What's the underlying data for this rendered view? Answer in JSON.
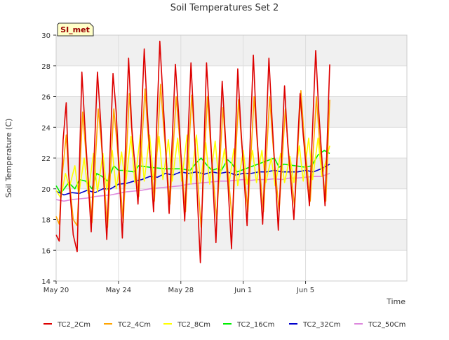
{
  "chart_data": {
    "type": "line",
    "title": "Soil Temperatures Set 2",
    "xlabel": "Time",
    "ylabel": "Soil Temperature (C)",
    "badge": "SI_met",
    "xlim": [
      0,
      22.5
    ],
    "ylim": [
      14,
      30
    ],
    "yticks": [
      14,
      16,
      18,
      20,
      22,
      24,
      26,
      28,
      30
    ],
    "xticks": [
      {
        "value": 0,
        "label": "May 20"
      },
      {
        "value": 4,
        "label": "May 24"
      },
      {
        "value": 8,
        "label": "May 28"
      },
      {
        "value": 12,
        "label": "Jun 1"
      },
      {
        "value": 16,
        "label": "Jun 5"
      }
    ],
    "grid": true,
    "legend_position": "bottom",
    "colors": {
      "TC2_2Cm": "#dd0000",
      "TC2_4Cm": "#ffa500",
      "TC2_8Cm": "#ffff00",
      "TC2_16Cm": "#00ee00",
      "TC2_32Cm": "#0000cc",
      "TC2_50Cm": "#dd88dd"
    },
    "series": [
      {
        "name": "TC2_2Cm",
        "x": [
          0.0,
          0.2,
          0.45,
          0.65,
          0.8,
          1.1,
          1.35,
          1.65,
          1.85,
          2.25,
          2.65,
          2.85,
          3.25,
          3.65,
          3.85,
          4.25,
          4.65,
          4.85,
          5.25,
          5.65,
          5.85,
          6.25,
          6.65,
          6.85,
          7.25,
          7.65,
          7.85,
          8.25,
          8.65,
          8.85,
          9.25,
          9.65,
          9.85,
          10.25,
          10.65,
          10.85,
          11.25,
          11.65,
          11.85,
          12.25,
          12.65,
          12.85,
          13.25,
          13.65,
          13.85,
          14.25,
          14.65,
          14.85,
          15.25,
          15.65,
          15.85,
          16.25,
          16.65,
          16.85,
          17.25,
          17.55
        ],
        "y": [
          17.0,
          16.6,
          23.2,
          25.6,
          21.0,
          17.0,
          15.9,
          27.6,
          24.0,
          17.2,
          27.6,
          24.5,
          16.7,
          27.5,
          25.0,
          16.8,
          28.5,
          24.0,
          19.0,
          29.1,
          25.0,
          18.5,
          29.6,
          26.0,
          18.4,
          28.1,
          25.0,
          17.9,
          28.2,
          24.0,
          15.2,
          28.2,
          24.5,
          16.5,
          27.0,
          23.5,
          16.1,
          27.8,
          24.0,
          17.6,
          28.7,
          24.0,
          17.7,
          28.5,
          24.5,
          17.3,
          26.7,
          23.0,
          18.0,
          26.2,
          23.5,
          18.9,
          29.0,
          25.0,
          18.9,
          28.1
        ]
      },
      {
        "name": "TC2_4Cm",
        "x": [
          0.0,
          0.2,
          0.4,
          0.65,
          0.8,
          1.1,
          1.35,
          1.7,
          1.9,
          2.3,
          2.7,
          2.9,
          3.3,
          3.7,
          3.9,
          4.3,
          4.7,
          4.9,
          5.3,
          5.7,
          5.9,
          6.3,
          6.7,
          6.9,
          7.3,
          7.7,
          7.9,
          8.3,
          8.7,
          8.9,
          9.3,
          9.7,
          9.9,
          10.3,
          10.7,
          10.9,
          11.3,
          11.7,
          11.9,
          12.3,
          12.7,
          12.9,
          13.3,
          13.7,
          13.9,
          14.3,
          14.7,
          14.9,
          15.3,
          15.7,
          15.9,
          16.3,
          16.7,
          16.9,
          17.3,
          17.55
        ],
        "y": [
          18.2,
          17.7,
          21.0,
          23.5,
          21.0,
          18.0,
          17.6,
          25.0,
          22.5,
          17.8,
          25.2,
          23.0,
          17.5,
          25.2,
          23.0,
          17.8,
          26.2,
          23.0,
          19.5,
          26.5,
          23.5,
          19.2,
          26.8,
          24.0,
          19.0,
          26.0,
          23.5,
          18.5,
          26.1,
          23.0,
          17.5,
          26.0,
          23.0,
          18.0,
          25.3,
          22.5,
          17.9,
          25.8,
          23.0,
          18.5,
          26.0,
          23.0,
          18.5,
          26.0,
          23.0,
          18.5,
          25.2,
          22.5,
          18.8,
          26.4,
          23.5,
          19.2,
          26.0,
          23.0,
          19.2,
          25.8
        ]
      },
      {
        "name": "TC2_8Cm",
        "x": [
          0.0,
          0.3,
          0.6,
          0.85,
          1.2,
          1.45,
          1.8,
          2.05,
          2.4,
          2.65,
          3.0,
          3.25,
          3.6,
          3.85,
          4.2,
          4.45,
          4.8,
          5.05,
          5.4,
          5.65,
          6.0,
          6.25,
          6.6,
          6.85,
          7.2,
          7.45,
          7.8,
          8.05,
          8.4,
          8.65,
          9.0,
          9.25,
          9.6,
          9.85,
          10.2,
          10.45,
          10.8,
          11.05,
          11.4,
          11.65,
          12.0,
          12.25,
          12.6,
          12.85,
          13.2,
          13.45,
          13.8,
          14.05,
          14.4,
          14.65,
          15.0,
          15.25,
          15.6,
          15.85,
          16.2,
          16.45,
          16.8,
          17.05,
          17.55
        ],
        "y": [
          19.9,
          19.4,
          21.0,
          20.1,
          21.5,
          19.6,
          22.0,
          19.7,
          22.3,
          19.8,
          22.3,
          19.9,
          22.5,
          20.0,
          22.4,
          20.2,
          23.4,
          20.4,
          23.5,
          20.5,
          23.5,
          20.6,
          23.4,
          20.6,
          23.2,
          20.5,
          23.3,
          20.5,
          23.5,
          20.3,
          23.5,
          20.4,
          23.0,
          20.3,
          23.1,
          20.4,
          22.6,
          20.0,
          22.6,
          20.2,
          22.5,
          20.3,
          22.5,
          20.4,
          22.5,
          20.4,
          22.0,
          20.2,
          22.3,
          20.4,
          22.1,
          20.4,
          22.8,
          20.5,
          23.3,
          20.6,
          23.3,
          20.8,
          22.8
        ]
      },
      {
        "name": "TC2_16Cm",
        "x": [
          0.0,
          0.3,
          0.8,
          1.2,
          1.5,
          1.9,
          2.3,
          2.6,
          2.95,
          3.3,
          3.7,
          4.0,
          4.3,
          5.0,
          5.3,
          6.0,
          7.0,
          8.0,
          8.6,
          9.0,
          9.3,
          9.7,
          10.0,
          10.3,
          10.6,
          11.0,
          11.3,
          11.6,
          14.0,
          14.3,
          14.6,
          16.0,
          16.4,
          16.8,
          17.2,
          17.55
        ],
        "y": [
          20.2,
          19.7,
          20.4,
          20.0,
          20.6,
          20.5,
          20.0,
          21.0,
          20.8,
          20.5,
          21.5,
          21.2,
          21.2,
          21.1,
          21.5,
          21.4,
          21.3,
          21.3,
          21.2,
          21.7,
          22.0,
          21.5,
          21.2,
          21.3,
          21.2,
          21.9,
          21.6,
          21.1,
          22.0,
          21.4,
          21.6,
          21.4,
          21.5,
          22.2,
          22.5,
          22.3
        ]
      },
      {
        "name": "TC2_32Cm",
        "x": [
          0.0,
          0.5,
          1.0,
          1.5,
          2.0,
          2.5,
          3.0,
          3.5,
          4.0,
          4.5,
          5.0,
          5.5,
          6.0,
          6.5,
          7.0,
          7.5,
          8.0,
          8.5,
          9.0,
          9.5,
          10.0,
          10.5,
          11.0,
          11.5,
          12.0,
          12.5,
          13.0,
          13.5,
          14.0,
          14.5,
          15.0,
          15.5,
          16.0,
          16.5,
          17.0,
          17.55
        ],
        "y": [
          19.85,
          19.6,
          19.75,
          19.7,
          19.9,
          19.75,
          20.0,
          20.0,
          20.3,
          20.35,
          20.5,
          20.6,
          20.8,
          20.75,
          21.0,
          20.9,
          21.1,
          21.0,
          21.1,
          20.95,
          21.1,
          21.0,
          21.1,
          20.9,
          21.0,
          21.0,
          21.1,
          21.1,
          21.2,
          21.1,
          21.1,
          21.1,
          21.2,
          21.1,
          21.3,
          21.6
        ]
      },
      {
        "name": "TC2_50Cm",
        "x": [
          0.0,
          0.5,
          1.0,
          1.5,
          2.0,
          2.5,
          3.0,
          3.5,
          4.0,
          4.5,
          5.0,
          5.5,
          6.0,
          6.5,
          7.0,
          7.5,
          8.0,
          8.5,
          9.0,
          9.5,
          10.0,
          10.5,
          11.0,
          11.5,
          12.0,
          12.5,
          13.0,
          13.5,
          14.0,
          14.5,
          15.0,
          15.5,
          16.0,
          16.5,
          17.0,
          17.55
        ],
        "y": [
          19.3,
          19.2,
          19.3,
          19.35,
          19.4,
          19.5,
          19.55,
          19.6,
          19.7,
          19.8,
          19.85,
          19.9,
          20.0,
          20.05,
          20.1,
          20.15,
          20.2,
          20.3,
          20.35,
          20.4,
          20.45,
          20.5,
          20.5,
          20.55,
          20.6,
          20.55,
          20.6,
          20.6,
          20.65,
          20.6,
          20.7,
          20.7,
          20.75,
          20.8,
          20.8,
          21.0
        ]
      }
    ]
  }
}
